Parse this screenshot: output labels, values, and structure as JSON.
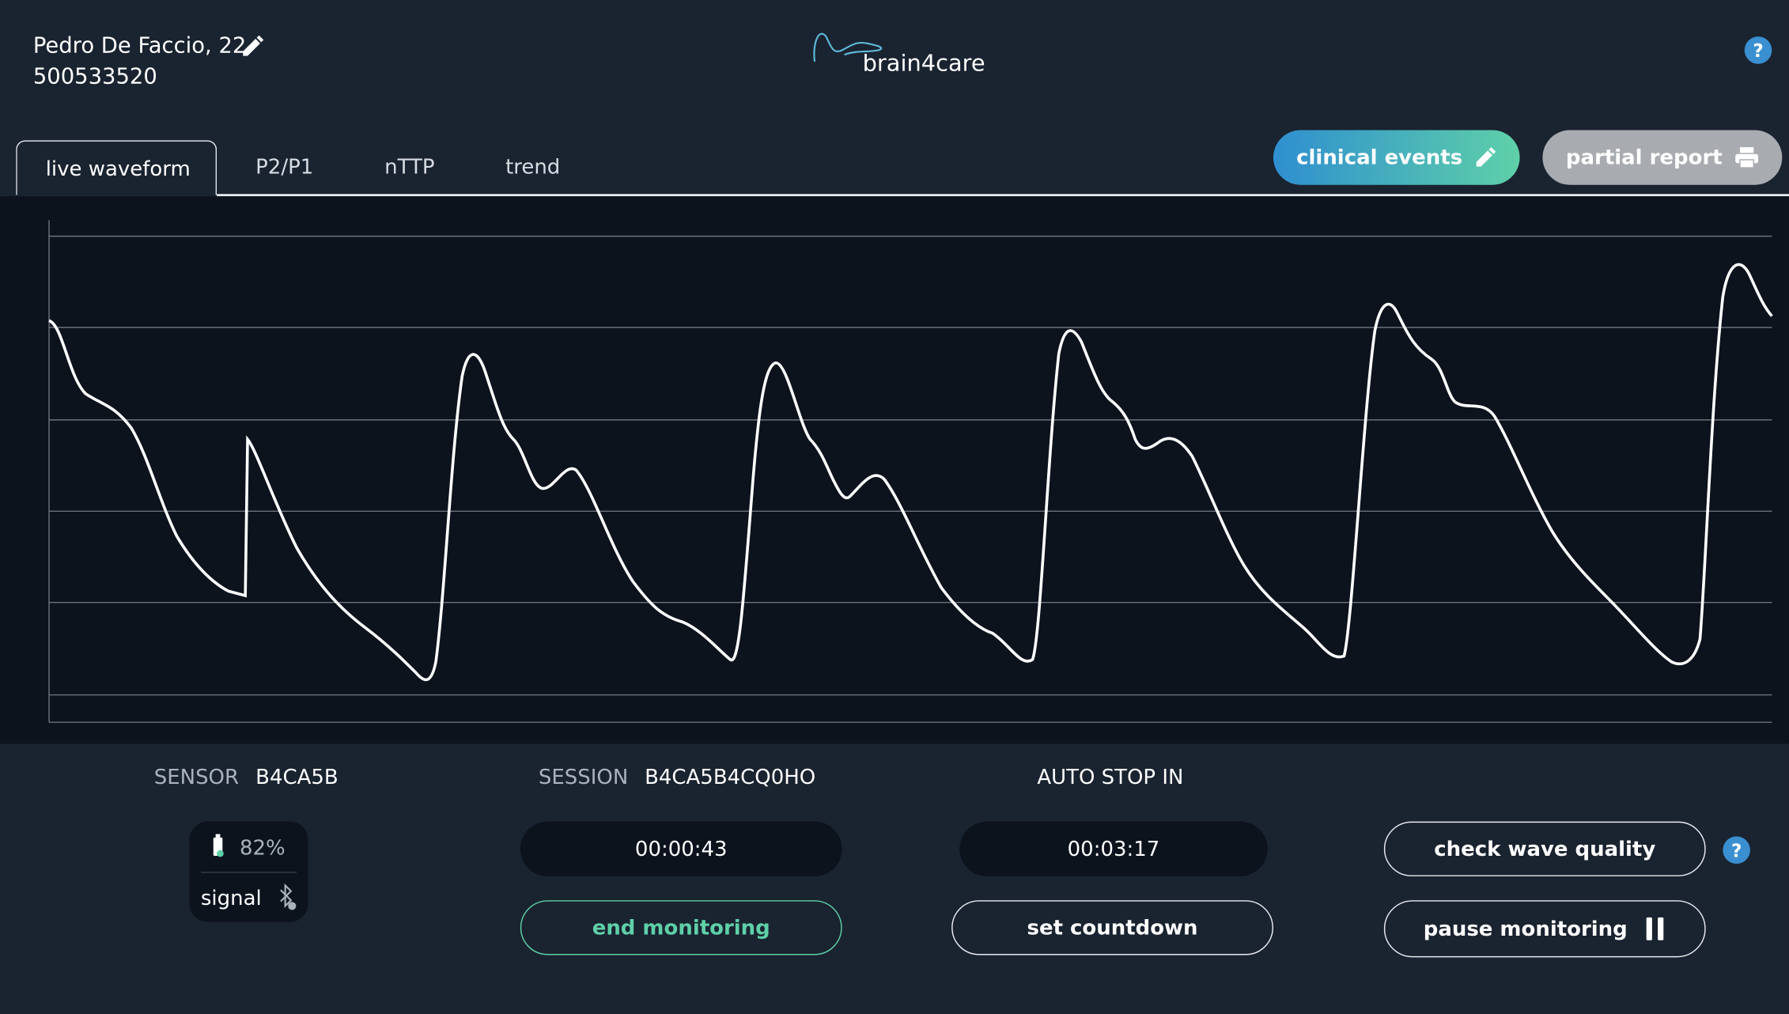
{
  "header": {
    "patient_name": "Pedro De Faccio, 22",
    "patient_id": "500533520",
    "logo": "brain4care",
    "help": "?"
  },
  "tabs": [
    "live waveform",
    "P2/P1",
    "nTTP",
    "trend"
  ],
  "actions": {
    "clinical_events": "clinical events",
    "partial_report": "partial report"
  },
  "status": {
    "sensor_label": "SENSOR",
    "sensor_id": "B4CA5B",
    "session_label": "SESSION",
    "session_id": "B4CA5B4CQ0HO",
    "auto_stop_label": "AUTO STOP IN",
    "battery": "82%",
    "signal": "signal",
    "elapsed": "00:00:43",
    "countdown": "00:03:17"
  },
  "controls": {
    "end_monitoring": "end monitoring",
    "set_countdown": "set countdown",
    "check_wave_quality": "check wave quality",
    "pause_monitoring": "pause monitoring"
  }
}
